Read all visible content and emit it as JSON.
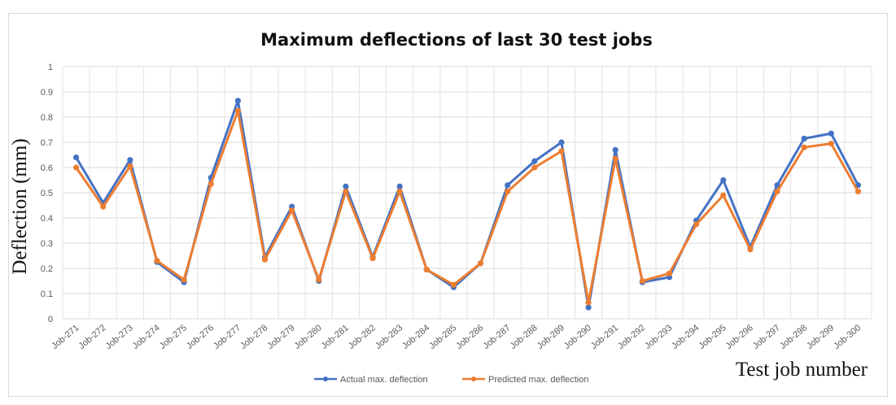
{
  "chart_data": {
    "type": "line",
    "title": "Maximum deflections of last 30 test jobs",
    "xlabel": "Test job number",
    "ylabel": "Deflection (mm)",
    "ylim": [
      0,
      1
    ],
    "yticks": [
      "0",
      "0.1",
      "0.2",
      "0.3",
      "0.4",
      "0.5",
      "0.6",
      "0.7",
      "0.8",
      "0.9",
      "1"
    ],
    "grid": true,
    "legend_position": "bottom",
    "categories": [
      "Job-271",
      "Job-272",
      "Job-273",
      "Job-274",
      "Job-275",
      "Job-276",
      "Job-277",
      "Job-278",
      "Job-279",
      "Job-280",
      "Job-281",
      "Job-282",
      "Job-283",
      "Job-284",
      "Job-285",
      "Job-286",
      "Job-287",
      "Job-288",
      "Job-289",
      "Job-290",
      "Job-291",
      "Job-292",
      "Job-293",
      "Job-294",
      "Job-295",
      "Job-296",
      "Job-297",
      "Job-298",
      "Job-299",
      "Job-300"
    ],
    "series": [
      {
        "name": "Actual max. deflection",
        "color": "#4472c4",
        "values": [
          0.64,
          0.46,
          0.63,
          0.225,
          0.145,
          0.56,
          0.865,
          0.245,
          0.445,
          0.15,
          0.525,
          0.245,
          0.525,
          0.195,
          0.125,
          0.22,
          0.53,
          0.625,
          0.7,
          0.045,
          0.67,
          0.145,
          0.165,
          0.39,
          0.55,
          0.285,
          0.53,
          0.715,
          0.735,
          0.53
        ]
      },
      {
        "name": "Predicted max. deflection",
        "color": "#ed7d31",
        "values": [
          0.6,
          0.445,
          0.605,
          0.23,
          0.155,
          0.535,
          0.825,
          0.235,
          0.43,
          0.155,
          0.505,
          0.24,
          0.505,
          0.195,
          0.135,
          0.22,
          0.505,
          0.6,
          0.665,
          0.065,
          0.635,
          0.15,
          0.18,
          0.375,
          0.49,
          0.275,
          0.505,
          0.68,
          0.695,
          0.505
        ]
      }
    ]
  }
}
